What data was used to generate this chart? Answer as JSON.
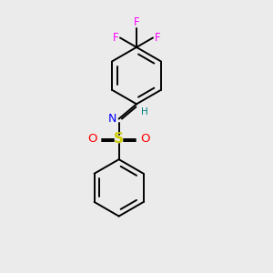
{
  "background_color": "#ebebeb",
  "colors": {
    "C": "#000000",
    "N": "#0000ff",
    "O": "#ff0000",
    "S": "#cccc00",
    "F": "#ff00ff",
    "H": "#008080"
  },
  "figsize": [
    3.0,
    3.0
  ],
  "dpi": 100
}
